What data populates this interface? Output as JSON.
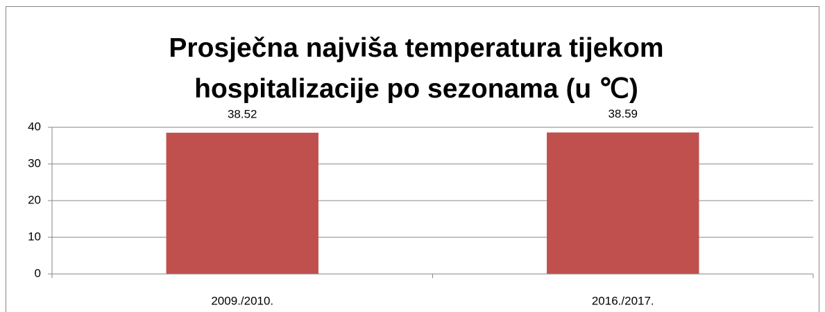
{
  "chart_data": {
    "type": "bar",
    "title": "Prosječna najviša temperatura tijekom hospitalizacije po sezonama (u ℃)",
    "categories": [
      "2009./2010.",
      "2016./2017."
    ],
    "values": [
      38.52,
      38.59
    ],
    "color": "#c0504d",
    "ylim": [
      0,
      40
    ],
    "yticks": [
      0,
      10,
      20,
      30,
      40
    ],
    "grid": true
  }
}
